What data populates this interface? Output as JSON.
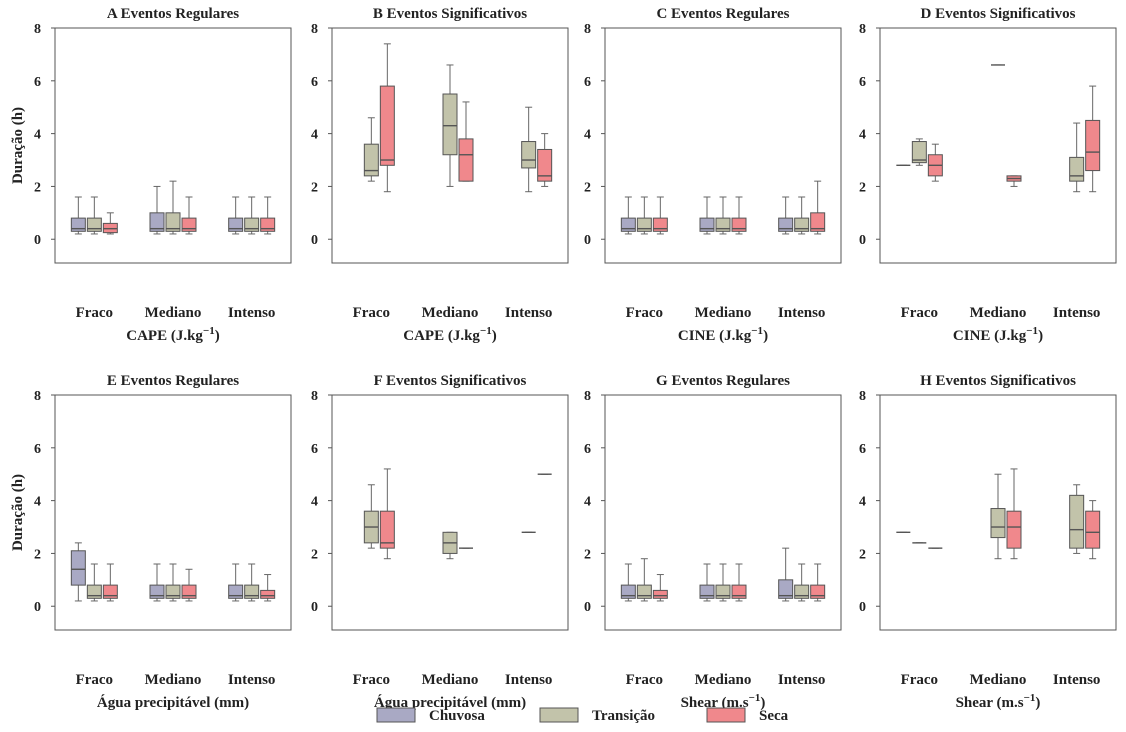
{
  "colors": {
    "Chuvosa": "#a9a9c4",
    "Transição": "#c2c3aa",
    "Seca": "#f0888c",
    "axis": "#555555",
    "whisker": "#666666",
    "median": "#555555"
  },
  "chart_data": [
    {
      "type": "box",
      "letter": "A",
      "title": "Eventos Regulares",
      "xlabel": "CAPE (J.kg",
      "xlabel_sup": "−1",
      "xlabel_end": ")",
      "ylabel": "Duração (h)",
      "ylim": [
        -0.9,
        8
      ],
      "yticks": [
        0,
        2,
        4,
        6,
        8
      ],
      "categories": [
        "Fraco",
        "Mediano",
        "Intenso"
      ],
      "series": [
        {
          "name": "Chuvosa",
          "boxes": [
            {
              "min": 0.2,
              "q1": 0.3,
              "median": 0.4,
              "q3": 0.8,
              "max": 1.6
            },
            {
              "min": 0.2,
              "q1": 0.3,
              "median": 0.4,
              "q3": 1.0,
              "max": 2.0
            },
            {
              "min": 0.2,
              "q1": 0.3,
              "median": 0.4,
              "q3": 0.8,
              "max": 1.6
            }
          ]
        },
        {
          "name": "Transição",
          "boxes": [
            {
              "min": 0.2,
              "q1": 0.3,
              "median": 0.4,
              "q3": 0.8,
              "max": 1.6
            },
            {
              "min": 0.2,
              "q1": 0.3,
              "median": 0.4,
              "q3": 1.0,
              "max": 2.2
            },
            {
              "min": 0.2,
              "q1": 0.3,
              "median": 0.4,
              "q3": 0.8,
              "max": 1.6
            }
          ]
        },
        {
          "name": "Seca",
          "boxes": [
            {
              "min": 0.2,
              "q1": 0.25,
              "median": 0.4,
              "q3": 0.6,
              "max": 1.0
            },
            {
              "min": 0.2,
              "q1": 0.3,
              "median": 0.4,
              "q3": 0.8,
              "max": 1.6
            },
            {
              "min": 0.2,
              "q1": 0.3,
              "median": 0.4,
              "q3": 0.8,
              "max": 1.6
            }
          ]
        }
      ]
    },
    {
      "type": "box",
      "letter": "B",
      "title": "Eventos Significativos",
      "xlabel": "CAPE (J.kg",
      "xlabel_sup": "−1",
      "xlabel_end": ")",
      "ylabel": "",
      "ylim": [
        -0.9,
        8
      ],
      "yticks": [
        0,
        2,
        4,
        6,
        8
      ],
      "categories": [
        "Fraco",
        "Mediano",
        "Intenso"
      ],
      "series": [
        {
          "name": "Chuvosa",
          "boxes": [
            null,
            null,
            null
          ]
        },
        {
          "name": "Transição",
          "boxes": [
            {
              "min": 2.2,
              "q1": 2.4,
              "median": 2.6,
              "q3": 3.6,
              "max": 4.6
            },
            {
              "min": 2.0,
              "q1": 3.2,
              "median": 4.3,
              "q3": 5.5,
              "max": 6.6
            },
            {
              "min": 1.8,
              "q1": 2.7,
              "median": 3.0,
              "q3": 3.7,
              "max": 5.0
            }
          ]
        },
        {
          "name": "Seca",
          "boxes": [
            {
              "min": 1.8,
              "q1": 2.8,
              "median": 3.0,
              "q3": 5.8,
              "max": 7.4
            },
            {
              "min": 2.2,
              "q1": 2.2,
              "median": 3.2,
              "q3": 3.8,
              "max": 5.2
            },
            {
              "min": 2.0,
              "q1": 2.2,
              "median": 2.4,
              "q3": 3.4,
              "max": 4.0
            }
          ]
        }
      ]
    },
    {
      "type": "box",
      "letter": "C",
      "title": "Eventos Regulares",
      "xlabel": "CINE (J.kg",
      "xlabel_sup": "−1",
      "xlabel_end": ")",
      "ylabel": "",
      "ylim": [
        -0.9,
        8
      ],
      "yticks": [
        0,
        2,
        4,
        6,
        8
      ],
      "categories": [
        "Fraco",
        "Mediano",
        "Intenso"
      ],
      "series": [
        {
          "name": "Chuvosa",
          "boxes": [
            {
              "min": 0.2,
              "q1": 0.3,
              "median": 0.4,
              "q3": 0.8,
              "max": 1.6
            },
            {
              "min": 0.2,
              "q1": 0.3,
              "median": 0.4,
              "q3": 0.8,
              "max": 1.6
            },
            {
              "min": 0.2,
              "q1": 0.3,
              "median": 0.4,
              "q3": 0.8,
              "max": 1.6
            }
          ]
        },
        {
          "name": "Transição",
          "boxes": [
            {
              "min": 0.2,
              "q1": 0.3,
              "median": 0.4,
              "q3": 0.8,
              "max": 1.6
            },
            {
              "min": 0.2,
              "q1": 0.3,
              "median": 0.4,
              "q3": 0.8,
              "max": 1.6
            },
            {
              "min": 0.2,
              "q1": 0.3,
              "median": 0.4,
              "q3": 0.8,
              "max": 1.6
            }
          ]
        },
        {
          "name": "Seca",
          "boxes": [
            {
              "min": 0.2,
              "q1": 0.3,
              "median": 0.4,
              "q3": 0.8,
              "max": 1.6
            },
            {
              "min": 0.2,
              "q1": 0.3,
              "median": 0.4,
              "q3": 0.8,
              "max": 1.6
            },
            {
              "min": 0.2,
              "q1": 0.3,
              "median": 0.4,
              "q3": 1.0,
              "max": 2.2
            }
          ]
        }
      ]
    },
    {
      "type": "box",
      "letter": "D",
      "title": "Eventos Significativos",
      "xlabel": "CINE (J.kg",
      "xlabel_sup": "−1",
      "xlabel_end": ")",
      "ylabel": "",
      "ylim": [
        -0.9,
        8
      ],
      "yticks": [
        0,
        2,
        4,
        6,
        8
      ],
      "categories": [
        "Fraco",
        "Mediano",
        "Intenso"
      ],
      "series": [
        {
          "name": "Chuvosa",
          "boxes": [
            {
              "min": 2.8,
              "q1": 2.8,
              "median": 2.8,
              "q3": 2.8,
              "max": 2.8
            },
            null,
            null
          ]
        },
        {
          "name": "Transição",
          "boxes": [
            {
              "min": 2.8,
              "q1": 2.9,
              "median": 3.0,
              "q3": 3.7,
              "max": 3.8
            },
            {
              "min": 6.6,
              "q1": 6.6,
              "median": 6.6,
              "q3": 6.6,
              "max": 6.6
            },
            {
              "min": 1.8,
              "q1": 2.2,
              "median": 2.4,
              "q3": 3.1,
              "max": 4.4
            }
          ]
        },
        {
          "name": "Seca",
          "boxes": [
            {
              "min": 2.2,
              "q1": 2.4,
              "median": 2.8,
              "q3": 3.2,
              "max": 3.6
            },
            {
              "min": 2.0,
              "q1": 2.2,
              "median": 2.3,
              "q3": 2.4,
              "max": 2.4
            },
            {
              "min": 1.8,
              "q1": 2.6,
              "median": 3.3,
              "q3": 4.5,
              "max": 5.8
            }
          ]
        }
      ]
    },
    {
      "type": "box",
      "letter": "E",
      "title": "Eventos Regulares",
      "xlabel": "Água precipitável (mm)",
      "xlabel_sup": "",
      "xlabel_end": "",
      "ylabel": "Duração (h)",
      "ylim": [
        -0.9,
        8
      ],
      "yticks": [
        0,
        2,
        4,
        6,
        8
      ],
      "categories": [
        "Fraco",
        "Mediano",
        "Intenso"
      ],
      "series": [
        {
          "name": "Chuvosa",
          "boxes": [
            {
              "min": 0.2,
              "q1": 0.8,
              "median": 1.4,
              "q3": 2.1,
              "max": 2.4
            },
            {
              "min": 0.2,
              "q1": 0.3,
              "median": 0.4,
              "q3": 0.8,
              "max": 1.6
            },
            {
              "min": 0.2,
              "q1": 0.3,
              "median": 0.4,
              "q3": 0.8,
              "max": 1.6
            }
          ]
        },
        {
          "name": "Transição",
          "boxes": [
            {
              "min": 0.2,
              "q1": 0.3,
              "median": 0.4,
              "q3": 0.8,
              "max": 1.6
            },
            {
              "min": 0.2,
              "q1": 0.3,
              "median": 0.4,
              "q3": 0.8,
              "max": 1.6
            },
            {
              "min": 0.2,
              "q1": 0.3,
              "median": 0.4,
              "q3": 0.8,
              "max": 1.6
            }
          ]
        },
        {
          "name": "Seca",
          "boxes": [
            {
              "min": 0.2,
              "q1": 0.3,
              "median": 0.4,
              "q3": 0.8,
              "max": 1.6
            },
            {
              "min": 0.2,
              "q1": 0.3,
              "median": 0.4,
              "q3": 0.8,
              "max": 1.4
            },
            {
              "min": 0.2,
              "q1": 0.3,
              "median": 0.4,
              "q3": 0.6,
              "max": 1.2
            }
          ]
        }
      ]
    },
    {
      "type": "box",
      "letter": "F",
      "title": "Eventos Significativos",
      "xlabel": "Água precipitável (mm)",
      "xlabel_sup": "",
      "xlabel_end": "",
      "ylabel": "",
      "ylim": [
        -0.9,
        8
      ],
      "yticks": [
        0,
        2,
        4,
        6,
        8
      ],
      "categories": [
        "Fraco",
        "Mediano",
        "Intenso"
      ],
      "series": [
        {
          "name": "Chuvosa",
          "boxes": [
            null,
            null,
            null
          ]
        },
        {
          "name": "Transição",
          "boxes": [
            {
              "min": 2.2,
              "q1": 2.4,
              "median": 3.0,
              "q3": 3.6,
              "max": 4.6
            },
            {
              "min": 1.8,
              "q1": 2.0,
              "median": 2.4,
              "q3": 2.8,
              "max": 2.8
            },
            {
              "min": 2.8,
              "q1": 2.8,
              "median": 2.8,
              "q3": 2.8,
              "max": 2.8
            }
          ]
        },
        {
          "name": "Seca",
          "boxes": [
            {
              "min": 1.8,
              "q1": 2.2,
              "median": 2.4,
              "q3": 3.6,
              "max": 5.2
            },
            {
              "min": 2.2,
              "q1": 2.2,
              "median": 2.2,
              "q3": 2.2,
              "max": 2.2
            },
            {
              "min": 5.0,
              "q1": 5.0,
              "median": 5.0,
              "q3": 5.0,
              "max": 5.0
            }
          ]
        }
      ]
    },
    {
      "type": "box",
      "letter": "G",
      "title": "Eventos Regulares",
      "xlabel": "Shear (m.s",
      "xlabel_sup": "−1",
      "xlabel_end": ")",
      "ylabel": "",
      "ylim": [
        -0.9,
        8
      ],
      "yticks": [
        0,
        2,
        4,
        6,
        8
      ],
      "categories": [
        "Fraco",
        "Mediano",
        "Intenso"
      ],
      "series": [
        {
          "name": "Chuvosa",
          "boxes": [
            {
              "min": 0.2,
              "q1": 0.3,
              "median": 0.4,
              "q3": 0.8,
              "max": 1.6
            },
            {
              "min": 0.2,
              "q1": 0.3,
              "median": 0.4,
              "q3": 0.8,
              "max": 1.6
            },
            {
              "min": 0.2,
              "q1": 0.3,
              "median": 0.4,
              "q3": 1.0,
              "max": 2.2
            }
          ]
        },
        {
          "name": "Transição",
          "boxes": [
            {
              "min": 0.2,
              "q1": 0.3,
              "median": 0.4,
              "q3": 0.8,
              "max": 1.8
            },
            {
              "min": 0.2,
              "q1": 0.3,
              "median": 0.4,
              "q3": 0.8,
              "max": 1.6
            },
            {
              "min": 0.2,
              "q1": 0.3,
              "median": 0.4,
              "q3": 0.8,
              "max": 1.6
            }
          ]
        },
        {
          "name": "Seca",
          "boxes": [
            {
              "min": 0.2,
              "q1": 0.3,
              "median": 0.4,
              "q3": 0.6,
              "max": 1.2
            },
            {
              "min": 0.2,
              "q1": 0.3,
              "median": 0.4,
              "q3": 0.8,
              "max": 1.6
            },
            {
              "min": 0.2,
              "q1": 0.3,
              "median": 0.4,
              "q3": 0.8,
              "max": 1.6
            }
          ]
        }
      ]
    },
    {
      "type": "box",
      "letter": "H",
      "title": "Eventos Significativos",
      "xlabel": "Shear (m.s",
      "xlabel_sup": "−1",
      "xlabel_end": ")",
      "ylabel": "",
      "ylim": [
        -0.9,
        8
      ],
      "yticks": [
        0,
        2,
        4,
        6,
        8
      ],
      "categories": [
        "Fraco",
        "Mediano",
        "Intenso"
      ],
      "series": [
        {
          "name": "Chuvosa",
          "boxes": [
            {
              "min": 2.8,
              "q1": 2.8,
              "median": 2.8,
              "q3": 2.8,
              "max": 2.8
            },
            null,
            null
          ]
        },
        {
          "name": "Transição",
          "boxes": [
            {
              "min": 2.4,
              "q1": 2.4,
              "median": 2.4,
              "q3": 2.4,
              "max": 2.4
            },
            {
              "min": 1.8,
              "q1": 2.6,
              "median": 3.0,
              "q3": 3.7,
              "max": 5.0
            },
            {
              "min": 2.0,
              "q1": 2.2,
              "median": 2.9,
              "q3": 4.2,
              "max": 4.6
            }
          ]
        },
        {
          "name": "Seca",
          "boxes": [
            {
              "min": 2.2,
              "q1": 2.2,
              "median": 2.2,
              "q3": 2.2,
              "max": 2.2
            },
            {
              "min": 1.8,
              "q1": 2.2,
              "median": 3.0,
              "q3": 3.6,
              "max": 5.2
            },
            {
              "min": 1.8,
              "q1": 2.2,
              "median": 2.8,
              "q3": 3.6,
              "max": 4.0
            }
          ]
        }
      ]
    }
  ],
  "legend": {
    "items": [
      {
        "name": "Chuvosa",
        "label": "Chuvosa"
      },
      {
        "name": "Transição",
        "label": "Transição"
      },
      {
        "name": "Seca",
        "label": "Seca"
      }
    ]
  }
}
